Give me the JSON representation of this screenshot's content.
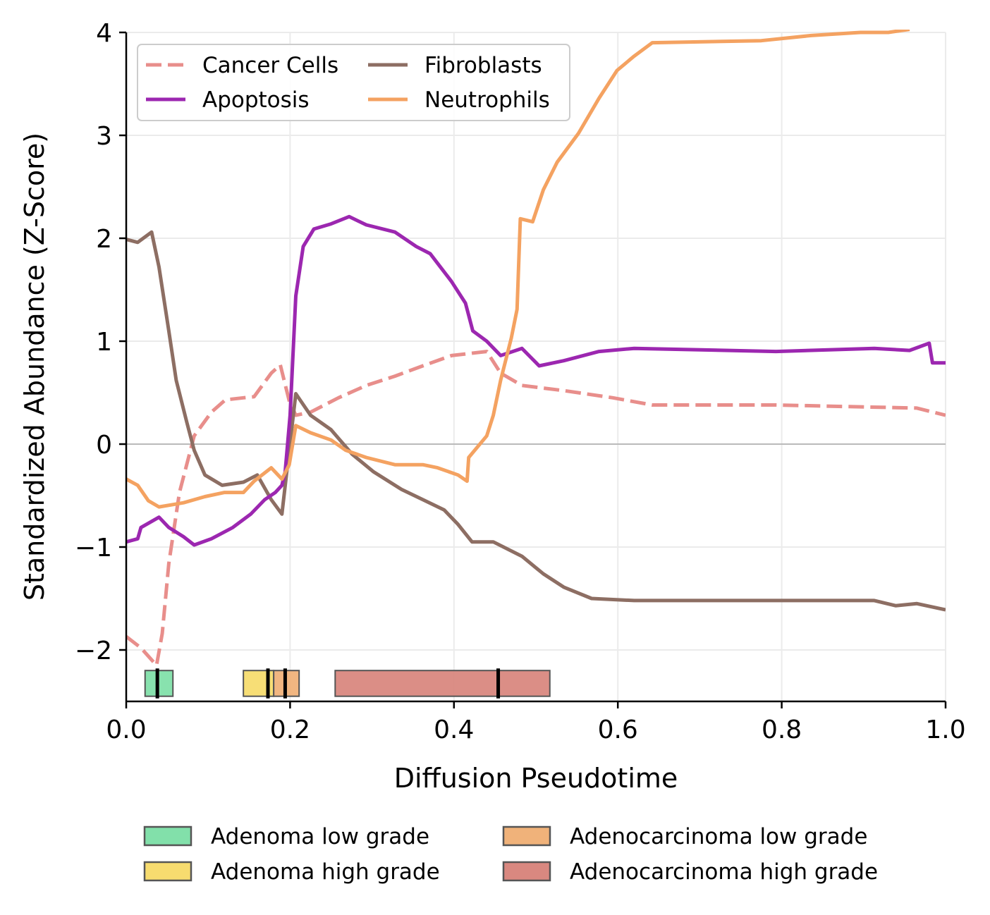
{
  "chart_data": {
    "type": "line",
    "title": "",
    "xlabel": "Diffusion Pseudotime",
    "ylabel": "Standardized Abundance (Z-Score)",
    "xlim": [
      0,
      1
    ],
    "ylim": [
      -2.5,
      4
    ],
    "xticks": [
      0,
      0.2,
      0.4,
      0.6,
      0.8,
      1.0
    ],
    "xtick_labels": [
      "0.0",
      "0.2",
      "0.4",
      "0.6",
      "0.8",
      "1.0"
    ],
    "yticks": [
      -2,
      -1,
      0,
      1,
      2,
      3,
      4
    ],
    "ytick_labels": [
      "−2",
      "−1",
      "0",
      "1",
      "2",
      "3",
      "4"
    ],
    "grid": true,
    "legend_position": "top-left",
    "series": [
      {
        "name": "Cancer Cells",
        "color": "#e88e8b",
        "dashed": true,
        "x": [
          0,
          0.018,
          0.037,
          0.044,
          0.052,
          0.065,
          0.083,
          0.104,
          0.121,
          0.143,
          0.156,
          0.177,
          0.188,
          0.199,
          0.207,
          0.225,
          0.259,
          0.293,
          0.328,
          0.362,
          0.397,
          0.44,
          0.457,
          0.483,
          0.534,
          0.594,
          0.642,
          0.793,
          0.965,
          1
        ],
        "y": [
          -1.87,
          -1.98,
          -2.15,
          -1.84,
          -1.16,
          -0.47,
          0.08,
          0.31,
          0.43,
          0.45,
          0.46,
          0.69,
          0.77,
          0.42,
          0.28,
          0.31,
          0.45,
          0.57,
          0.66,
          0.76,
          0.86,
          0.9,
          0.69,
          0.57,
          0.52,
          0.45,
          0.38,
          0.38,
          0.35,
          0.28
        ]
      },
      {
        "name": "Fibroblasts",
        "color": "#8d6e63",
        "dashed": false,
        "x": [
          0,
          0.014,
          0.031,
          0.04,
          0.052,
          0.061,
          0.074,
          0.083,
          0.096,
          0.117,
          0.143,
          0.16,
          0.177,
          0.19,
          0.199,
          0.207,
          0.225,
          0.25,
          0.276,
          0.302,
          0.336,
          0.362,
          0.388,
          0.405,
          0.422,
          0.448,
          0.483,
          0.509,
          0.534,
          0.568,
          0.62,
          0.793,
          0.913,
          0.939,
          0.965,
          1
        ],
        "y": [
          1.99,
          1.96,
          2.06,
          1.72,
          1.1,
          0.62,
          0.21,
          -0.06,
          -0.3,
          -0.4,
          -0.37,
          -0.3,
          -0.54,
          -0.68,
          -0.06,
          0.49,
          0.28,
          0.14,
          -0.1,
          -0.27,
          -0.44,
          -0.54,
          -0.64,
          -0.78,
          -0.95,
          -0.95,
          -1.09,
          -1.26,
          -1.39,
          -1.5,
          -1.52,
          -1.52,
          -1.52,
          -1.57,
          -1.55,
          -1.61
        ]
      },
      {
        "name": "Apoptosis",
        "color": "#9c27b0",
        "dashed": false,
        "x": [
          0,
          0.014,
          0.018,
          0.04,
          0.052,
          0.07,
          0.083,
          0.104,
          0.13,
          0.152,
          0.169,
          0.182,
          0.19,
          0.194,
          0.2,
          0.207,
          0.216,
          0.229,
          0.25,
          0.272,
          0.293,
          0.328,
          0.354,
          0.371,
          0.397,
          0.414,
          0.423,
          0.44,
          0.457,
          0.483,
          0.504,
          0.534,
          0.577,
          0.62,
          0.793,
          0.913,
          0.956,
          0.98,
          0.984,
          1
        ],
        "y": [
          -0.95,
          -0.92,
          -0.81,
          -0.71,
          -0.81,
          -0.9,
          -0.98,
          -0.92,
          -0.81,
          -0.68,
          -0.54,
          -0.47,
          -0.4,
          -0.27,
          0.28,
          1.44,
          1.92,
          2.09,
          2.14,
          2.21,
          2.13,
          2.06,
          1.92,
          1.85,
          1.58,
          1.37,
          1.1,
          1.0,
          0.86,
          0.93,
          0.76,
          0.81,
          0.9,
          0.93,
          0.9,
          0.93,
          0.91,
          0.98,
          0.79,
          0.79
        ]
      },
      {
        "name": "Neutrophils",
        "color": "#f4a261",
        "dashed": false,
        "x": [
          0,
          0.014,
          0.027,
          0.04,
          0.07,
          0.096,
          0.12,
          0.143,
          0.156,
          0.177,
          0.19,
          0.199,
          0.207,
          0.225,
          0.25,
          0.268,
          0.293,
          0.328,
          0.362,
          0.38,
          0.405,
          0.416,
          0.418,
          0.44,
          0.448,
          0.457,
          0.47,
          0.477,
          0.481,
          0.496,
          0.509,
          0.526,
          0.552,
          0.577,
          0.599,
          0.62,
          0.642,
          0.775,
          0.836,
          0.896,
          0.93,
          0.956
        ],
        "y": [
          -0.34,
          -0.4,
          -0.55,
          -0.61,
          -0.57,
          -0.51,
          -0.47,
          -0.47,
          -0.36,
          -0.23,
          -0.34,
          -0.2,
          0.18,
          0.11,
          0.04,
          -0.06,
          -0.13,
          -0.2,
          -0.2,
          -0.23,
          -0.3,
          -0.36,
          -0.13,
          0.08,
          0.28,
          0.62,
          1.03,
          1.31,
          2.19,
          2.16,
          2.47,
          2.74,
          3.02,
          3.36,
          3.63,
          3.77,
          3.9,
          3.92,
          3.97,
          4.0,
          4.0,
          4.03
        ]
      }
    ],
    "stage_boxes": {
      "y_range": [
        -2.45,
        -2.2
      ],
      "items": [
        {
          "name": "Adenoma low grade",
          "color": "#82e0aa",
          "start": 0.023,
          "end": 0.057,
          "median": 0.038
        },
        {
          "name": "Adenoma high grade",
          "color": "#f7dc6f",
          "start": 0.143,
          "end": 0.18,
          "median": 0.173
        },
        {
          "name": "Adenocarcinoma low grade",
          "color": "#f0b27a",
          "start": 0.18,
          "end": 0.211,
          "median": 0.194
        },
        {
          "name": "Adenocarcinoma high grade",
          "color": "#d98880",
          "start": 0.255,
          "end": 0.517,
          "median": 0.454
        }
      ]
    }
  }
}
